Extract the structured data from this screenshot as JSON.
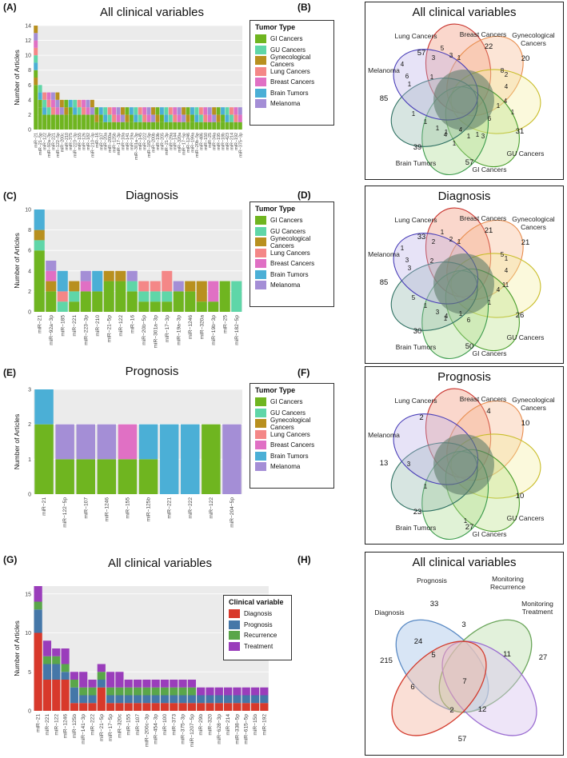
{
  "colors": {
    "tumor": [
      "#6fb520",
      "#5fd6a8",
      "#b8901f",
      "#f48787",
      "#e070c4",
      "#4bafd6",
      "#a48ed6"
    ],
    "clinical": [
      "#d8392b",
      "#4577a8",
      "#5aa64a",
      "#9a3dbb"
    ],
    "plot_bg": "#ebebeb"
  },
  "panels": {
    "A": {
      "letter": "(A)",
      "title": "All clinical variables"
    },
    "B": {
      "letter": "(B)",
      "title": "All clinical variables"
    },
    "C": {
      "letter": "(C)",
      "title": "Diagnosis"
    },
    "D": {
      "letter": "(D)",
      "title": "Diagnosis"
    },
    "E": {
      "letter": "(E)",
      "title": "Prognosis"
    },
    "F": {
      "letter": "(F)",
      "title": "Prognosis"
    },
    "G": {
      "letter": "(G)",
      "title": "All clinical variables"
    },
    "H": {
      "letter": "(H)",
      "title": "All clinical variables"
    }
  },
  "tumor_legend": {
    "title": "Tumor Type",
    "items": [
      "GI Cancers",
      "GU Cancers",
      "Gynecological Cancers",
      "Lung Cancers",
      "Breast Cancers",
      "Brain Tumors",
      "Melanoma"
    ]
  },
  "clinical_legend": {
    "title": "Clinical variable",
    "items": [
      "Diagnosis",
      "Prognosis",
      "Recurrence",
      "Treatment"
    ]
  },
  "chart_data": [
    {
      "id": "A",
      "type": "bar",
      "stacked": true,
      "title": "All clinical variables",
      "ylabel": "Number of Articles",
      "ylim": [
        0,
        14
      ],
      "yticks": [
        0,
        2,
        4,
        6,
        8,
        10,
        12,
        14
      ],
      "n_bars": 48,
      "categories": [
        "miR−21",
        "miR−21−5p",
        "miR−122",
        "miR−92a−3p",
        "miR−221",
        "miR−122−5p",
        "miR−200c",
        "miR−210",
        "miR−375",
        "miR−223−3p",
        "miR−155",
        "miR−126",
        "miR−182",
        "miR−210−3p",
        "miR−16",
        "miR−107",
        "miR−20a",
        "miR−200a",
        "miR−125b",
        "miR−17−3p",
        "miR−18a",
        "miR−141",
        "miR−19a",
        "miR−301a−3p",
        "miR−145",
        "miR−222",
        "miR−182−5p",
        "miR−200b",
        "miR−19b",
        "miR−205",
        "miR−21−3p",
        "miR−29a",
        "miR−144",
        "miR−320a",
        "miR−17−5p",
        "miR−1246",
        "miR−199a",
        "miR−20b−5p",
        "miR−486",
        "miR−150",
        "miR−25",
        "miR−34a",
        "miR−195",
        "miR−18b",
        "miR−423",
        "miR−214",
        "miR−192",
        "miR−375−3p"
      ],
      "totals": [
        14,
        6,
        5,
        5,
        5,
        5,
        4,
        4,
        4,
        4,
        4,
        4,
        4,
        4,
        3,
        3,
        3,
        3,
        3,
        3,
        3,
        3,
        3,
        3,
        3,
        3,
        3,
        3,
        3,
        3,
        3,
        3,
        3,
        3,
        3,
        3,
        3,
        3,
        3,
        3,
        3,
        3,
        3,
        3,
        3,
        3,
        3,
        3
      ],
      "legend": "Tumor Type"
    },
    {
      "id": "C",
      "type": "bar",
      "stacked": true,
      "title": "Diagnosis",
      "ylabel": "Number of Articles",
      "ylim": [
        0,
        10
      ],
      "yticks": [
        0,
        2,
        4,
        6,
        8,
        10
      ],
      "categories": [
        "miR−21",
        "miR−92a−3p",
        "miR−185",
        "miR−221",
        "miR−223−3p",
        "miR−210",
        "miR−21−5p",
        "miR−122",
        "miR−16",
        "miR−20b−5p",
        "miR−301a−3p",
        "miR−17−3p",
        "miR−19a−3p",
        "miR−1246",
        "miR−320a",
        "miR−19b−3p",
        "miR−25",
        "miR−182−5p"
      ],
      "series": [
        {
          "name": "GI Cancers",
          "values": [
            6,
            2,
            0,
            1,
            2,
            2,
            3,
            3,
            2,
            1,
            1,
            1,
            2,
            2,
            1,
            1,
            3,
            0
          ]
        },
        {
          "name": "GU Cancers",
          "values": [
            1,
            0,
            1,
            1,
            0,
            0,
            0,
            0,
            1,
            1,
            1,
            1,
            0,
            0,
            0,
            0,
            0,
            3
          ]
        },
        {
          "name": "Gynecological Cancers",
          "values": [
            1,
            1,
            0,
            1,
            0,
            0,
            1,
            1,
            0,
            0,
            0,
            0,
            0,
            1,
            2,
            0,
            0,
            0
          ]
        },
        {
          "name": "Lung Cancers",
          "values": [
            0,
            0,
            1,
            0,
            0,
            0,
            0,
            0,
            0,
            1,
            1,
            2,
            0,
            0,
            0,
            0,
            0,
            0
          ]
        },
        {
          "name": "Breast Cancers",
          "values": [
            0,
            1,
            0,
            0,
            1,
            0,
            0,
            0,
            0,
            0,
            0,
            0,
            0,
            0,
            0,
            2,
            0,
            0
          ]
        },
        {
          "name": "Brain Tumors",
          "values": [
            2,
            0,
            2,
            0,
            0,
            2,
            0,
            0,
            0,
            0,
            0,
            0,
            0,
            0,
            0,
            0,
            0,
            0
          ]
        },
        {
          "name": "Melanoma",
          "values": [
            0,
            1,
            0,
            0,
            1,
            0,
            0,
            0,
            1,
            0,
            0,
            0,
            1,
            0,
            0,
            0,
            0,
            0
          ]
        }
      ],
      "legend": "Tumor Type"
    },
    {
      "id": "E",
      "type": "bar",
      "stacked": true,
      "title": "Prognosis",
      "ylabel": "Number of Articles",
      "ylim": [
        0,
        3
      ],
      "yticks": [
        0,
        1,
        2,
        3
      ],
      "categories": [
        "miR−21",
        "miR−122−5p",
        "miR−107",
        "miR−1246",
        "miR−155",
        "miR−125b",
        "miR−221",
        "miR−222",
        "miR−122",
        "miR−204−5p"
      ],
      "series": [
        {
          "name": "GI Cancers",
          "values": [
            2,
            1,
            1,
            1,
            1,
            1,
            0,
            0,
            2,
            0
          ]
        },
        {
          "name": "GU Cancers",
          "values": [
            0,
            0,
            0,
            0,
            0,
            0,
            0,
            0,
            0,
            0
          ]
        },
        {
          "name": "Gynecological Cancers",
          "values": [
            0,
            0,
            0,
            0,
            0,
            0,
            0,
            0,
            0,
            0
          ]
        },
        {
          "name": "Lung Cancers",
          "values": [
            0,
            0,
            0,
            0,
            0,
            0,
            0,
            0,
            0,
            0
          ]
        },
        {
          "name": "Breast Cancers",
          "values": [
            0,
            0,
            0,
            0,
            1,
            0,
            0,
            0,
            0,
            0
          ]
        },
        {
          "name": "Brain Tumors",
          "values": [
            1,
            0,
            0,
            0,
            0,
            1,
            2,
            2,
            0,
            0
          ]
        },
        {
          "name": "Melanoma",
          "values": [
            0,
            1,
            1,
            1,
            0,
            0,
            0,
            0,
            0,
            2
          ]
        }
      ],
      "legend": "Tumor Type"
    },
    {
      "id": "G",
      "type": "bar",
      "stacked": true,
      "title": "All clinical variables",
      "ylabel": "Number of Articles",
      "ylim": [
        0,
        16
      ],
      "yticks": [
        0,
        5,
        10,
        15
      ],
      "categories": [
        "miR−21",
        "miR−221",
        "miR−122",
        "miR−1246",
        "miR−125b",
        "miR−141−3p",
        "miR−222",
        "miR−21−5p",
        "miR−17−5p",
        "miR−320c",
        "miR−155",
        "miR−107",
        "miR−200c−3p",
        "miR−454−3p",
        "miR−100",
        "miR−373",
        "miR−375−3p",
        "miR−1207−5p",
        "miR−29b",
        "miR−320",
        "miR−628−3p",
        "miR−214",
        "miR−338−5p",
        "miR−615−5p",
        "miR−15b",
        "miR−192"
      ],
      "series": [
        {
          "name": "Diagnosis",
          "values": [
            10,
            4,
            4,
            4,
            1,
            1,
            1,
            3,
            1,
            1,
            1,
            1,
            1,
            1,
            1,
            1,
            1,
            1,
            1,
            1,
            1,
            1,
            1,
            1,
            1,
            1
          ]
        },
        {
          "name": "Prognosis",
          "values": [
            3,
            2,
            2,
            1,
            2,
            1,
            1,
            1,
            1,
            1,
            1,
            1,
            1,
            1,
            1,
            1,
            1,
            1,
            1,
            1,
            1,
            1,
            1,
            1,
            1,
            1
          ]
        },
        {
          "name": "Recurrence",
          "values": [
            1,
            1,
            1,
            1,
            1,
            1,
            1,
            1,
            1,
            1,
            1,
            1,
            1,
            1,
            1,
            1,
            1,
            1,
            0,
            0,
            0,
            0,
            0,
            0,
            0,
            0
          ]
        },
        {
          "name": "Treatment",
          "values": [
            2,
            2,
            1,
            2,
            1,
            2,
            1,
            1,
            2,
            2,
            1,
            1,
            1,
            1,
            1,
            1,
            1,
            1,
            1,
            1,
            1,
            1,
            1,
            1,
            1,
            1
          ]
        }
      ],
      "legend": "Clinical variable"
    }
  ],
  "venn_B": {
    "labels": [
      "Lung Cancers",
      "Breast Cancers",
      "Gynecological Cancers",
      "GU Cancers",
      "GI Cancers",
      "Brain Tumors",
      "Melanoma"
    ],
    "numbers": [
      "57",
      "22",
      "20",
      "31",
      "57",
      "39",
      "85",
      "3",
      "3",
      "1",
      "8",
      "2",
      "4",
      "4",
      "1",
      "6",
      "1",
      "4",
      "1",
      "1",
      "1",
      "1",
      "1",
      "6",
      "4",
      "5",
      "1",
      "4",
      "1",
      "3",
      "1",
      "1"
    ]
  },
  "venn_D": {
    "labels": [
      "Lung Cancers",
      "Breast Cancers",
      "Gynecological Cancers",
      "GU Cancers",
      "GI Cancers",
      "Brain Tumors",
      "Melanoma"
    ],
    "numbers": [
      "33",
      "21",
      "21",
      "26",
      "50",
      "30",
      "85",
      "2",
      "2",
      "1",
      "5",
      "1",
      "4",
      "11",
      "4",
      "1",
      "6",
      "1",
      "4",
      "3",
      "1",
      "5",
      "3",
      "3",
      "1",
      "1",
      "2",
      "1"
    ]
  },
  "venn_F": {
    "labels": [
      "Lung Cancers",
      "Breast Cancers",
      "Gynecological Cancers",
      "GU Cancers",
      "GI Cancers",
      "Brain Tumors",
      "Melanoma"
    ],
    "numbers": [
      "2",
      "4",
      "10",
      "10",
      "27",
      "23",
      "13",
      "3",
      "1",
      "1"
    ]
  },
  "venn_H": {
    "labels": [
      "Prognosis",
      "Monitoring\nRecurrence",
      "Monitoring\nTreatment",
      "Diagnosis"
    ],
    "numbers": [
      "33",
      "3",
      "27",
      "215",
      "24",
      "5",
      "11",
      "7",
      "6",
      "2",
      "12",
      "57"
    ]
  }
}
